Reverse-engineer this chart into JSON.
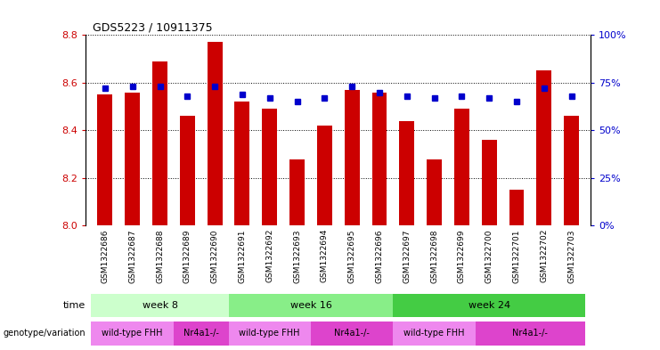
{
  "title": "GDS5223 / 10911375",
  "samples": [
    "GSM1322686",
    "GSM1322687",
    "GSM1322688",
    "GSM1322689",
    "GSM1322690",
    "GSM1322691",
    "GSM1322692",
    "GSM1322693",
    "GSM1322694",
    "GSM1322695",
    "GSM1322696",
    "GSM1322697",
    "GSM1322698",
    "GSM1322699",
    "GSM1322700",
    "GSM1322701",
    "GSM1322702",
    "GSM1322703"
  ],
  "transformed_count": [
    8.55,
    8.56,
    8.69,
    8.46,
    8.77,
    8.52,
    8.49,
    8.28,
    8.42,
    8.57,
    8.56,
    8.44,
    8.28,
    8.49,
    8.36,
    8.15,
    8.65,
    8.46
  ],
  "percentile_rank": [
    72,
    73,
    73,
    68,
    73,
    69,
    67,
    65,
    67,
    73,
    70,
    68,
    67,
    68,
    67,
    65,
    72,
    68
  ],
  "ylim_left": [
    8.0,
    8.8
  ],
  "ylim_right": [
    0,
    100
  ],
  "yticks_left": [
    8.0,
    8.2,
    8.4,
    8.6,
    8.8
  ],
  "yticks_right": [
    0,
    25,
    50,
    75,
    100
  ],
  "bar_color": "#CC0000",
  "dot_color": "#0000CC",
  "bar_width": 0.55,
  "time_groups": [
    {
      "label": "week 8",
      "start": 0,
      "end": 5,
      "color": "#ccffcc"
    },
    {
      "label": "week 16",
      "start": 5,
      "end": 11,
      "color": "#88ee88"
    },
    {
      "label": "week 24",
      "start": 11,
      "end": 18,
      "color": "#44cc44"
    }
  ],
  "genotype_groups": [
    {
      "label": "wild-type FHH",
      "start": 0,
      "end": 3,
      "color": "#ee88ee"
    },
    {
      "label": "Nr4a1-/-",
      "start": 3,
      "end": 5,
      "color": "#dd44cc"
    },
    {
      "label": "wild-type FHH",
      "start": 5,
      "end": 8,
      "color": "#ee88ee"
    },
    {
      "label": "Nr4a1-/-",
      "start": 8,
      "end": 11,
      "color": "#dd44cc"
    },
    {
      "label": "wild-type FHH",
      "start": 11,
      "end": 14,
      "color": "#ee88ee"
    },
    {
      "label": "Nr4a1-/-",
      "start": 14,
      "end": 18,
      "color": "#dd44cc"
    }
  ],
  "bar_axis_color": "#CC0000",
  "dot_axis_color": "#0000CC",
  "background_color": "#ffffff"
}
